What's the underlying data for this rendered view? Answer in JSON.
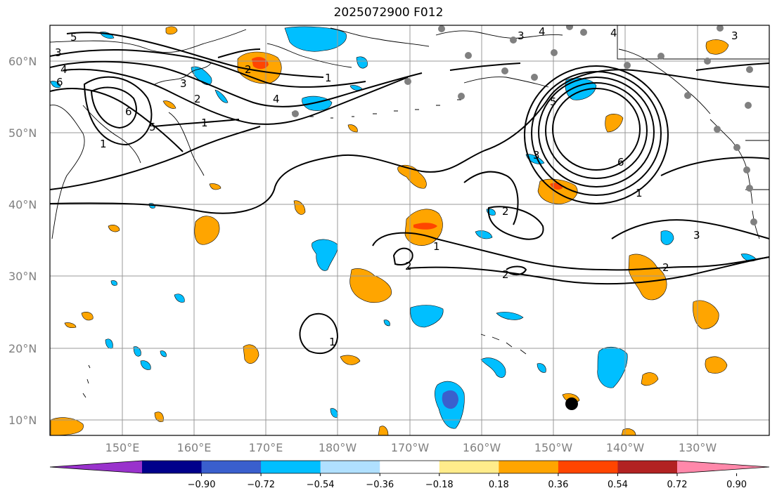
{
  "title": "2025072900 F012",
  "map": {
    "lat_ticks": [
      "60°N",
      "50°N",
      "40°N",
      "30°N",
      "20°N",
      "10°N"
    ],
    "lon_ticks": [
      "150°E",
      "160°E",
      "170°E",
      "180°W",
      "170°W",
      "160°W",
      "150°W",
      "140°W",
      "130°W"
    ]
  },
  "colorbar": {
    "tick_labels": [
      "−0.90",
      "−0.72",
      "−0.54",
      "−0.36",
      "−0.18",
      "0.18",
      "0.36",
      "0.54",
      "0.72",
      "0.90"
    ],
    "colors": [
      "#9932cc",
      "#00008b",
      "#3a5fcd",
      "#00bfff",
      "#b0e0ff",
      "#ffffff",
      "#ffec8b",
      "#ffa500",
      "#ff4500",
      "#b22222",
      "#ff88aa"
    ]
  },
  "contour_labels": [
    "5",
    "3",
    "4",
    "6",
    "3",
    "2",
    "1",
    "5",
    "6",
    "1",
    "2",
    "3",
    "4",
    "5",
    "6",
    "1",
    "1",
    "2",
    "3",
    "2",
    "1",
    "2",
    "2",
    "1",
    "3",
    "4",
    "3",
    "4"
  ],
  "marker": {
    "label": "",
    "color": "#000000"
  }
}
